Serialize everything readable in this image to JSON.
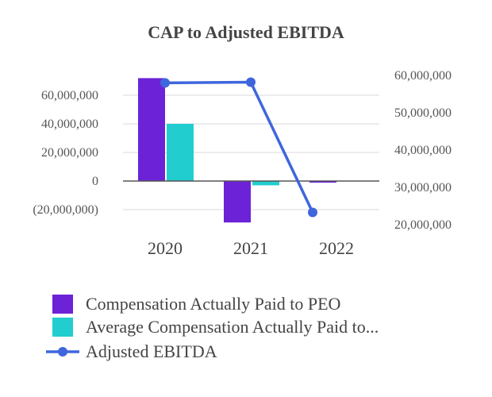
{
  "chart_data": {
    "type": "bar",
    "title": "CAP to Adjusted EBITDA",
    "categories": [
      "2020",
      "2021",
      "2022"
    ],
    "series": [
      {
        "name": "Compensation Actually Paid to PEO",
        "type": "bar",
        "axis": "left",
        "color": "#6c22d6",
        "values": [
          72000000,
          -29000000,
          -1000000
        ]
      },
      {
        "name": "Average Compensation Actually Paid to...",
        "type": "bar",
        "axis": "left",
        "color": "#22cdd0",
        "values": [
          40000000,
          -3000000,
          0
        ]
      },
      {
        "name": "Adjusted EBITDA",
        "type": "line",
        "axis": "right",
        "color": "#3f66dd",
        "values": [
          58000000,
          58200000,
          23300000
        ]
      }
    ],
    "left_axis": {
      "ylim": [
        -30000000,
        80000000
      ],
      "ticks": [
        60000000,
        40000000,
        20000000,
        0,
        -20000000
      ],
      "tick_labels": [
        "60,000,000",
        "40,000,000",
        "20,000,000",
        "0",
        "(20,000,000)"
      ]
    },
    "right_axis": {
      "ylim": [
        18000000,
        62000000
      ],
      "ticks": [
        60000000,
        50000000,
        40000000,
        30000000,
        20000000
      ],
      "tick_labels": [
        "60,000,000",
        "50,000,000",
        "40,000,000",
        "30,000,000",
        "20,000,000"
      ]
    },
    "grid": true,
    "legend_position": "bottom"
  }
}
